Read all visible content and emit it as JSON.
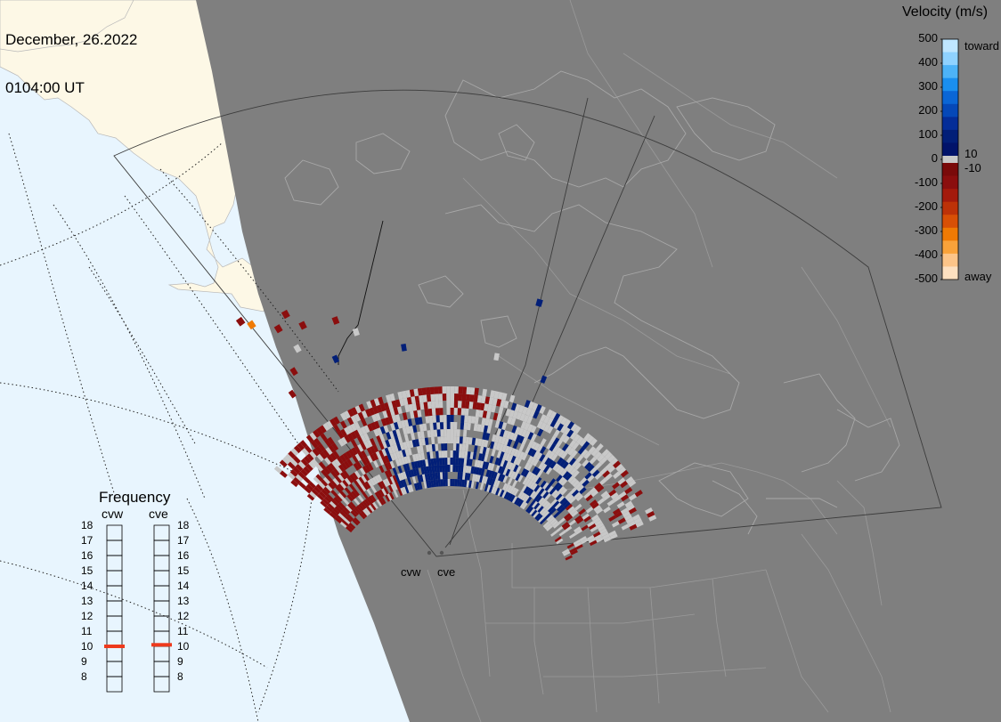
{
  "header": {
    "date": "December, 26.2022",
    "time": "0104:00 UT"
  },
  "velocity_legend": {
    "title": "Velocity (m/s)",
    "ticks": [
      "500",
      "400",
      "300",
      "200",
      "100",
      "0",
      "-100",
      "-200",
      "-300",
      "-400",
      "-500"
    ],
    "toward_label": "toward",
    "away_label": "away",
    "gap_pos_label": "10",
    "gap_neg_label": "-10",
    "colors_top_to_bottom": [
      "#bfe6ff",
      "#8fd2ff",
      "#4db3f7",
      "#1a8fef",
      "#0a66d6",
      "#0548b8",
      "#042d98",
      "#021f78",
      "#01136a",
      "#7a0a0a",
      "#8b0e0e",
      "#a31a0c",
      "#bd3208",
      "#d85006",
      "#ef7a04",
      "#f9a23a",
      "#fcc488",
      "#fde0c0"
    ],
    "ground_scatter_color": "#c8c8c8"
  },
  "frequency_panel": {
    "title": "Frequency",
    "columns": [
      "cvw",
      "cve"
    ],
    "levels": [
      "18",
      "17",
      "16",
      "15",
      "14",
      "13",
      "12",
      "11",
      "10",
      "9",
      "8"
    ],
    "current_mhz": {
      "cvw": 10.5,
      "cve": 10.6
    },
    "marker_color": "#ee3a1c"
  },
  "radar_sites": [
    "cvw",
    "cve"
  ],
  "map_colors": {
    "ocean": "#e8f5fe",
    "night_land": "#7f7f7f",
    "day_land": "#fdf8e6",
    "borders": "#9a9a9a",
    "fov_outline": "#4a4a4a"
  }
}
